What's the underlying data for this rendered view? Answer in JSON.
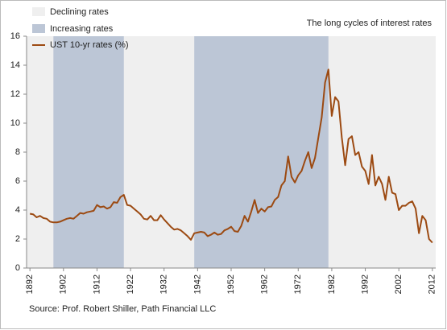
{
  "chart_data": {
    "type": "line",
    "title": "The long cycles of interest rates",
    "source": "Source: Prof. Robert Shiller, Path Financial LLC",
    "background": {
      "name": "Declining rates",
      "color": "#efefef"
    },
    "shaded_periods": {
      "name": "Increasing rates",
      "color": "#bcc6d6",
      "ranges": [
        [
          1899,
          1920
        ],
        [
          1941,
          1981
        ]
      ]
    },
    "x": [
      1892,
      1893,
      1894,
      1895,
      1896,
      1897,
      1898,
      1899,
      1900,
      1901,
      1902,
      1903,
      1904,
      1905,
      1906,
      1907,
      1908,
      1909,
      1910,
      1911,
      1912,
      1913,
      1914,
      1915,
      1916,
      1917,
      1918,
      1919,
      1920,
      1921,
      1922,
      1923,
      1924,
      1925,
      1926,
      1927,
      1928,
      1929,
      1930,
      1931,
      1932,
      1933,
      1934,
      1935,
      1936,
      1937,
      1938,
      1939,
      1940,
      1941,
      1942,
      1943,
      1944,
      1945,
      1946,
      1947,
      1948,
      1949,
      1950,
      1951,
      1952,
      1953,
      1954,
      1955,
      1956,
      1957,
      1958,
      1959,
      1960,
      1961,
      1962,
      1963,
      1964,
      1965,
      1966,
      1967,
      1968,
      1969,
      1970,
      1971,
      1972,
      1973,
      1974,
      1975,
      1976,
      1977,
      1978,
      1979,
      1980,
      1981,
      1982,
      1983,
      1984,
      1985,
      1986,
      1987,
      1988,
      1989,
      1990,
      1991,
      1992,
      1993,
      1994,
      1995,
      1996,
      1997,
      1998,
      1999,
      2000,
      2001,
      2002,
      2003,
      2004,
      2005,
      2006,
      2007,
      2008,
      2009,
      2010,
      2011,
      2012
    ],
    "series": [
      {
        "name": "UST 10-yr rates (%)",
        "color": "#9c4a12",
        "values": [
          3.75,
          3.7,
          3.5,
          3.6,
          3.45,
          3.4,
          3.2,
          3.15,
          3.15,
          3.2,
          3.3,
          3.4,
          3.45,
          3.4,
          3.6,
          3.8,
          3.75,
          3.85,
          3.9,
          3.95,
          4.35,
          4.2,
          4.25,
          4.1,
          4.2,
          4.55,
          4.5,
          4.9,
          5.05,
          4.35,
          4.3,
          4.1,
          3.9,
          3.7,
          3.4,
          3.35,
          3.6,
          3.3,
          3.3,
          3.65,
          3.35,
          3.1,
          2.85,
          2.65,
          2.7,
          2.6,
          2.4,
          2.2,
          1.95,
          2.4,
          2.45,
          2.5,
          2.45,
          2.2,
          2.3,
          2.45,
          2.3,
          2.35,
          2.6,
          2.7,
          2.85,
          2.55,
          2.5,
          2.9,
          3.6,
          3.2,
          3.9,
          4.7,
          3.8,
          4.1,
          3.9,
          4.2,
          4.25,
          4.7,
          4.9,
          5.7,
          6.0,
          7.7,
          6.3,
          5.9,
          6.4,
          6.7,
          7.4,
          8.0,
          6.9,
          7.6,
          9.0,
          10.4,
          12.8,
          13.7,
          10.5,
          11.8,
          11.5,
          9.0,
          7.1,
          8.9,
          9.1,
          7.8,
          8.0,
          7.0,
          6.7,
          5.8,
          7.8,
          5.7,
          6.3,
          5.8,
          4.7,
          6.3,
          5.2,
          5.1,
          4.0,
          4.3,
          4.3,
          4.5,
          4.6,
          4.1,
          2.4,
          3.6,
          3.3,
          2.0,
          1.75
        ]
      }
    ],
    "xlim": [
      1891,
      2013
    ],
    "xticks": [
      1892,
      1902,
      1912,
      1922,
      1932,
      1942,
      1952,
      1962,
      1972,
      1982,
      1992,
      2002,
      2012
    ],
    "ylim": [
      0,
      16
    ],
    "yticks": [
      0,
      2,
      4,
      6,
      8,
      10,
      12,
      14,
      16
    ],
    "legend": "top-left"
  }
}
